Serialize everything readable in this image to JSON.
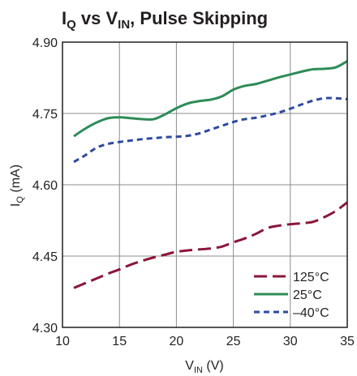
{
  "chart_data": {
    "type": "line",
    "title": {
      "main": "I",
      "main_sub": "Q",
      "rest_a": " vs V",
      "rest_sub": "IN",
      "rest_b": ", Pulse Skipping"
    },
    "xlabel": {
      "main": "V",
      "sub": "IN",
      "rest": " (V)"
    },
    "ylabel": {
      "main": "I",
      "sub": "Q",
      "rest": " (mA)"
    },
    "xlim": [
      10,
      35
    ],
    "ylim": [
      4.3,
      4.9
    ],
    "xticks": [
      10,
      15,
      20,
      25,
      30,
      35
    ],
    "xtick_labels": [
      "10",
      "15",
      "20",
      "25",
      "30",
      "35"
    ],
    "yticks": [
      4.3,
      4.45,
      4.6,
      4.75,
      4.9
    ],
    "ytick_labels": [
      "4.30",
      "4.45",
      "4.60",
      "4.75",
      "4.90"
    ],
    "grid": true,
    "legend_position": "bottom-right",
    "series": [
      {
        "name": "125°C",
        "color": "#8b1538",
        "dash": "long-dash",
        "x": [
          11,
          12,
          13,
          14,
          15,
          16,
          17,
          18,
          19,
          20,
          21,
          22,
          23,
          24,
          25,
          26,
          27,
          28,
          29,
          30,
          31,
          32,
          33,
          34,
          35
        ],
        "y": [
          4.383,
          4.393,
          4.403,
          4.413,
          4.422,
          4.432,
          4.44,
          4.447,
          4.453,
          4.459,
          4.462,
          4.464,
          4.466,
          4.47,
          4.479,
          4.487,
          4.497,
          4.509,
          4.514,
          4.517,
          4.519,
          4.522,
          4.532,
          4.545,
          4.563
        ]
      },
      {
        "name": "25°C",
        "color": "#2e8b57",
        "dash": "solid",
        "x": [
          11,
          12,
          13,
          14,
          15,
          16,
          17,
          18,
          19,
          20,
          21,
          22,
          23,
          24,
          25,
          26,
          27,
          28,
          29,
          30,
          31,
          32,
          33,
          34,
          35
        ],
        "y": [
          4.702,
          4.718,
          4.731,
          4.74,
          4.742,
          4.74,
          4.738,
          4.738,
          4.748,
          4.761,
          4.771,
          4.776,
          4.779,
          4.786,
          4.8,
          4.808,
          4.812,
          4.819,
          4.826,
          4.832,
          4.838,
          4.843,
          4.844,
          4.847,
          4.86
        ]
      },
      {
        "name": "–40°C",
        "color": "#2e4a9e",
        "dash": "short-dash",
        "x": [
          11,
          12,
          13,
          14,
          15,
          16,
          17,
          18,
          19,
          20,
          21,
          22,
          23,
          24,
          25,
          26,
          27,
          28,
          29,
          30,
          31,
          32,
          33,
          34,
          35
        ],
        "y": [
          4.648,
          4.662,
          4.678,
          4.686,
          4.69,
          4.693,
          4.696,
          4.698,
          4.7,
          4.701,
          4.703,
          4.708,
          4.716,
          4.724,
          4.732,
          4.738,
          4.741,
          4.746,
          4.752,
          4.76,
          4.769,
          4.777,
          4.782,
          4.782,
          4.78
        ]
      }
    ]
  }
}
